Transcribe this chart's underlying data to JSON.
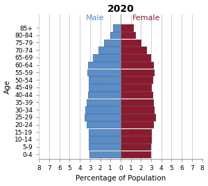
{
  "title": "2020",
  "xlabel": "Percentage of Population",
  "ylabel": "Age",
  "male_label": "Male",
  "female_label": "Female",
  "age_groups": [
    "0-4",
    "5-9",
    "10-14",
    "15-19",
    "20-24",
    "25-29",
    "30-34",
    "35-39",
    "40-44",
    "45-49",
    "50-54",
    "55-59",
    "60-64",
    "65-69",
    "70-74",
    "75-79",
    "80-84",
    "85+"
  ],
  "male_values": [
    3.05,
    3.1,
    3.1,
    3.1,
    3.35,
    3.55,
    3.45,
    3.35,
    3.2,
    3.1,
    3.1,
    3.25,
    3.2,
    2.75,
    2.2,
    1.65,
    1.05,
    0.75
  ],
  "female_values": [
    2.9,
    2.95,
    3.0,
    3.0,
    3.2,
    3.4,
    3.3,
    3.2,
    3.1,
    3.0,
    3.1,
    3.25,
    3.2,
    2.9,
    2.5,
    1.95,
    1.4,
    1.25
  ],
  "male_color": "#5b8ec9",
  "female_color": "#8b1a2e",
  "male_label_color": "#5b8ec9",
  "female_label_color": "#8b1a2e",
  "male_edge_color": "#3a6090",
  "female_edge_color": "#5c0f1e",
  "background_color": "#ffffff",
  "grid_color": "#c8c8c8",
  "xlim": 8,
  "title_fontsize": 10,
  "axis_label_fontsize": 7.5,
  "tick_fontsize": 6.5,
  "label_fontsize": 8
}
